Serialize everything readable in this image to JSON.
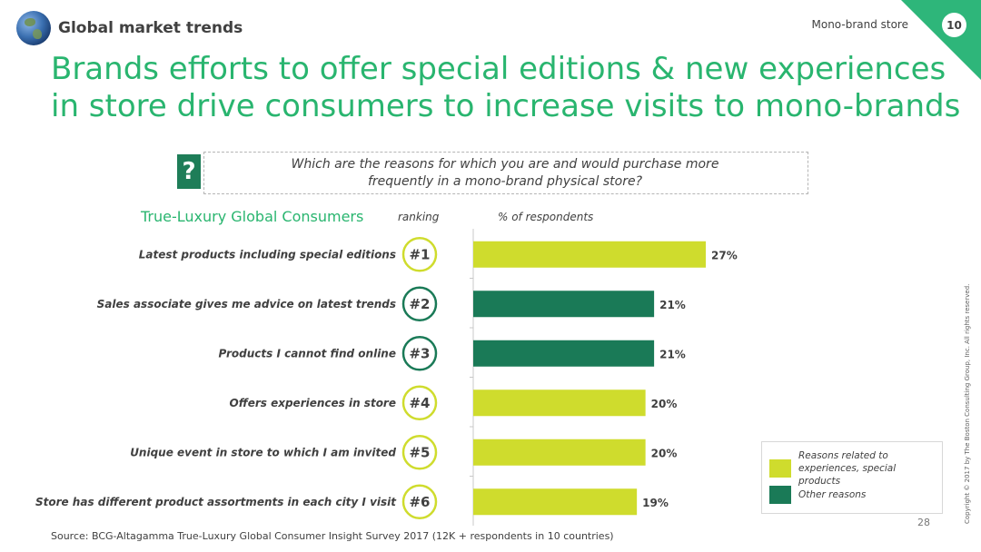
{
  "header": {
    "section_title": "Global market trends",
    "corner_label": "Mono-brand store",
    "corner_number": "10",
    "title": "Brands efforts to offer special editions & new experiences in store drive consumers to increase visits to mono-brands"
  },
  "question": {
    "mark": "?",
    "text_line1": "Which are the reasons for which you are and would purchase more",
    "text_line2": "frequently in a mono-brand physical store?"
  },
  "chart_header": {
    "subhead": "True-Luxury Global Consumers",
    "ranking_label": "ranking",
    "pct_label": "% of respondents"
  },
  "colors": {
    "experience": "#cfdc2d",
    "other": "#1a7a57",
    "title_green": "#29b56f"
  },
  "chart_data": {
    "type": "bar",
    "orientation": "horizontal",
    "xlabel": "% of respondents",
    "xlim": [
      0,
      27
    ],
    "categories": [
      "Latest products including special editions",
      "Sales associate gives me advice on latest trends",
      "Products I cannot find online",
      "Offers experiences in store",
      "Unique event in store to which I am invited",
      "Store has different product assortments in each city I visit"
    ],
    "ranks": [
      "#1",
      "#2",
      "#3",
      "#4",
      "#5",
      "#6"
    ],
    "values": [
      27,
      21,
      21,
      20,
      20,
      19
    ],
    "value_labels": [
      "27%",
      "21%",
      "21%",
      "20%",
      "20%",
      "19%"
    ],
    "groups": [
      "experience",
      "other",
      "other",
      "experience",
      "experience",
      "experience"
    ],
    "legend": [
      {
        "key": "experience",
        "label_line1": "Reasons related to",
        "label_line2": "experiences, special products"
      },
      {
        "key": "other",
        "label_line1": "Other reasons",
        "label_line2": ""
      }
    ],
    "legend_position": "bottom-right"
  },
  "footer": {
    "source": "Source: BCG-Altagamma True-Luxury Global Consumer Insight Survey 2017 (12K + respondents in 10 countries)",
    "page_number": "28",
    "copyright": "Copyright © 2017 by The Boston Consulting Group, Inc. All rights reserved."
  }
}
